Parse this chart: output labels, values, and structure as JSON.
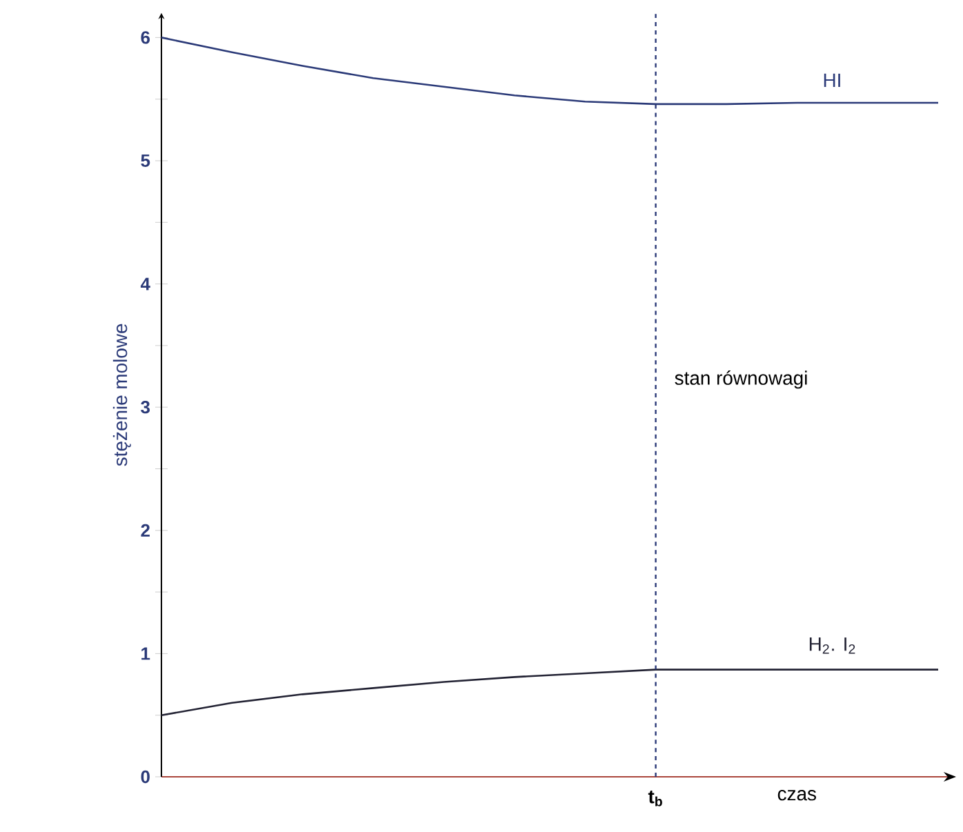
{
  "chart_data": {
    "type": "line",
    "xlabel": "czas",
    "ylabel": "stężenie molowe",
    "ylim": [
      0,
      6.2
    ],
    "yticks": [
      0,
      {
        "value": 0.5,
        "label": null
      },
      1,
      {
        "value": 1.5,
        "label": null
      },
      2,
      {
        "value": 2.5,
        "label": null
      },
      3,
      {
        "value": 3.5,
        "label": null
      },
      4,
      {
        "value": 4.5,
        "label": null
      },
      5,
      {
        "value": 5.5,
        "label": null
      },
      6
    ],
    "categories": [
      null,
      null,
      null,
      null,
      null,
      null,
      null,
      "t$_{b}$",
      null,
      null,
      null,
      null
    ],
    "series": [
      {
        "name": "HI",
        "color": "#2b3a78",
        "values": [
          6.0,
          5.88,
          5.77,
          5.67,
          5.6,
          5.53,
          5.48,
          5.46,
          5.46,
          5.47,
          5.47,
          5.47
        ]
      },
      {
        "name": "H$_{2}$. I$_{2}$",
        "color": "#222233",
        "values": [
          0.5,
          0.6,
          0.67,
          0.72,
          0.77,
          0.81,
          0.84,
          0.87,
          0.87,
          0.87,
          0.87,
          0.87
        ]
      }
    ],
    "ref_lines": [
      {
        "axis": "x",
        "value": "t$_{b}$",
        "line_style": "dashed",
        "color": "#2b3a78"
      }
    ],
    "annotations": [
      "stan równowagi"
    ],
    "grid": false,
    "legend": false,
    "marker": "none",
    "line_style": "solid"
  }
}
